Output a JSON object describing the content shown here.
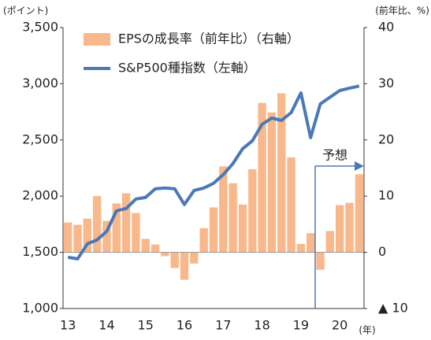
{
  "chart_data": {
    "type": "bar",
    "y_label": "(ポイント)",
    "y2_label": "(前年比、%)",
    "x_label": "(年)",
    "annotation": "予想",
    "categories": [
      "13",
      null,
      null,
      null,
      "14",
      null,
      null,
      null,
      "15",
      null,
      null,
      null,
      "16",
      null,
      null,
      null,
      "17",
      null,
      null,
      null,
      "18",
      null,
      null,
      null,
      "19",
      null,
      null,
      null,
      "20",
      null,
      null
    ],
    "series": [
      {
        "name": "EPSの成長率（前年比）（右軸）",
        "type": "bar",
        "axis": "y2",
        "color": "#f8b88b",
        "values": [
          5.3,
          4.9,
          6.0,
          10.0,
          5.6,
          8.7,
          10.5,
          7.0,
          2.4,
          1.4,
          -0.7,
          -2.8,
          -4.9,
          -2.0,
          4.3,
          8.0,
          15.3,
          12.3,
          8.5,
          14.8,
          26.6,
          24.9,
          28.3,
          16.9,
          1.5,
          3.4,
          -3.1,
          3.8,
          8.4,
          8.8,
          13.9
        ]
      },
      {
        "name": "S&P500種指数（左軸）",
        "type": "line",
        "axis": "y",
        "color": "#4a78b8",
        "values": [
          1456,
          1442,
          1575,
          1610,
          1687,
          1869,
          1890,
          1974,
          1988,
          2065,
          2072,
          2065,
          1925,
          2051,
          2072,
          2114,
          2191,
          2289,
          2422,
          2492,
          2639,
          2695,
          2674,
          2744,
          2919,
          2520,
          2820,
          2880,
          2940,
          2960,
          2980
        ]
      }
    ],
    "ylim": [
      1000,
      3500
    ],
    "yticks": [
      {
        "value": 1000,
        "label": "1,000"
      },
      {
        "value": 1500,
        "label": "1,500"
      },
      {
        "value": 2000,
        "label": "2,000"
      },
      {
        "value": 2500,
        "label": "2,500"
      },
      {
        "value": 3000,
        "label": "3,000"
      },
      {
        "value": 3500,
        "label": "3,500"
      }
    ],
    "y2lim": [
      -10,
      40
    ],
    "y2ticks": [
      {
        "value": -10,
        "label": "▲ 10"
      },
      0,
      10,
      20,
      30,
      40
    ]
  }
}
